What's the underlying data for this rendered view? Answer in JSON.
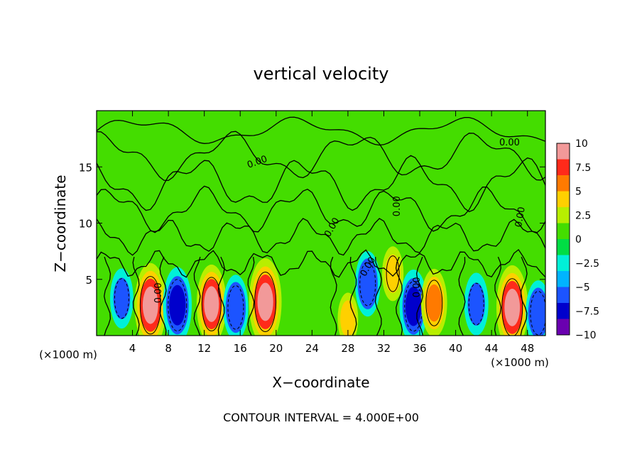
{
  "chart_data": {
    "type": "heatmap",
    "title": "vertical velocity",
    "xlabel": "X−coordinate",
    "ylabel": "Z−coordinate",
    "x_unit": "(×1000 m)",
    "x_unit_right": "(×1000 m)",
    "xlim": [
      0,
      50
    ],
    "ylim": [
      0,
      20
    ],
    "x_ticks": [
      4,
      8,
      12,
      16,
      20,
      24,
      28,
      32,
      36,
      40,
      44,
      48
    ],
    "y_ticks": [
      5,
      10,
      15
    ],
    "footer": "CONTOUR INTERVAL = 4.000E+00",
    "contour_interval": 4.0,
    "contour_label": "0.00",
    "colorbar": {
      "min": -10,
      "max": 10,
      "tick_labels": [
        "10",
        "7.5",
        "5",
        "2.5",
        "0",
        "−2.5",
        "−5",
        "−7.5",
        "−10"
      ],
      "colors": [
        "#f29999",
        "#ff2a1a",
        "#ff7a00",
        "#ffd000",
        "#b8ee00",
        "#44dd00",
        "#00dd44",
        "#00f0d8",
        "#00b4ff",
        "#1c54ff",
        "#0000cc",
        "#6a00b0"
      ]
    },
    "features": [
      {
        "x": 6.0,
        "z": 2.7,
        "value": 9.5,
        "sign": "updraft"
      },
      {
        "x": 9.0,
        "z": 2.7,
        "value": -8.0,
        "sign": "downdraft"
      },
      {
        "x": 12.8,
        "z": 2.8,
        "value": 8.5,
        "sign": "updraft"
      },
      {
        "x": 18.8,
        "z": 3.0,
        "value": 10.0,
        "sign": "updraft"
      },
      {
        "x": 15.5,
        "z": 2.5,
        "value": -6.0,
        "sign": "downdraft"
      },
      {
        "x": 2.8,
        "z": 3.3,
        "value": -5.0,
        "sign": "downdraft"
      },
      {
        "x": 30.2,
        "z": 4.6,
        "value": -6.0,
        "sign": "downdraft"
      },
      {
        "x": 35.3,
        "z": 2.6,
        "value": -7.5,
        "sign": "downdraft"
      },
      {
        "x": 37.6,
        "z": 2.9,
        "value": 6.5,
        "sign": "updraft"
      },
      {
        "x": 42.3,
        "z": 2.8,
        "value": -5.5,
        "sign": "downdraft"
      },
      {
        "x": 46.3,
        "z": 2.5,
        "value": 9.5,
        "sign": "updraft"
      },
      {
        "x": 49.2,
        "z": 2.0,
        "value": -6.0,
        "sign": "downdraft"
      },
      {
        "x": 33.0,
        "z": 5.5,
        "value": 4.0,
        "sign": "updraft"
      },
      {
        "x": 28.0,
        "z": 1.5,
        "value": 3.5,
        "sign": "updraft"
      }
    ]
  }
}
